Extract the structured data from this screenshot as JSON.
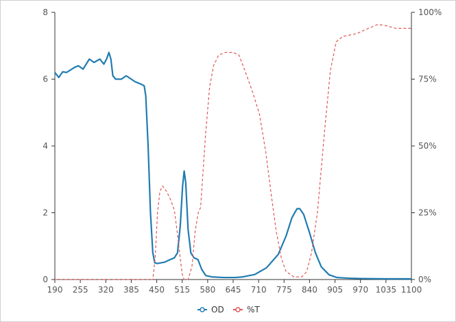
{
  "chart_data": {
    "type": "line",
    "xlabel": "",
    "ylabel": "",
    "y2label": "",
    "xlim": [
      190,
      1100
    ],
    "ylim": [
      0,
      8
    ],
    "y2lim": [
      0,
      100
    ],
    "x_ticks": [
      "190",
      "255",
      "320",
      "385",
      "450",
      "515",
      "580",
      "645",
      "710",
      "775",
      "840",
      "905",
      "970",
      "1035",
      "1100"
    ],
    "y_ticks": [
      "0",
      "2",
      "4",
      "6",
      "8"
    ],
    "y2_ticks": [
      "0%",
      "25%",
      "50%",
      "75%",
      "100%"
    ],
    "grid": false,
    "legend_position": "bottom",
    "series": [
      {
        "name": "OD",
        "axis": "left",
        "color": "#1f7bb0",
        "style": "solid",
        "points": [
          [
            190,
            6.2
          ],
          [
            200,
            6.05
          ],
          [
            210,
            6.22
          ],
          [
            220,
            6.2
          ],
          [
            240,
            6.35
          ],
          [
            250,
            6.4
          ],
          [
            262,
            6.3
          ],
          [
            278,
            6.6
          ],
          [
            290,
            6.5
          ],
          [
            305,
            6.6
          ],
          [
            315,
            6.45
          ],
          [
            322,
            6.6
          ],
          [
            328,
            6.8
          ],
          [
            333,
            6.6
          ],
          [
            338,
            6.1
          ],
          [
            345,
            6.0
          ],
          [
            360,
            6.0
          ],
          [
            372,
            6.1
          ],
          [
            385,
            6.0
          ],
          [
            395,
            5.92
          ],
          [
            410,
            5.85
          ],
          [
            418,
            5.8
          ],
          [
            422,
            5.5
          ],
          [
            428,
            4.0
          ],
          [
            434,
            2.0
          ],
          [
            440,
            0.8
          ],
          [
            445,
            0.5
          ],
          [
            452,
            0.48
          ],
          [
            470,
            0.52
          ],
          [
            485,
            0.6
          ],
          [
            495,
            0.65
          ],
          [
            503,
            0.8
          ],
          [
            510,
            1.6
          ],
          [
            516,
            2.8
          ],
          [
            520,
            3.25
          ],
          [
            524,
            2.9
          ],
          [
            530,
            1.5
          ],
          [
            537,
            0.8
          ],
          [
            545,
            0.65
          ],
          [
            555,
            0.6
          ],
          [
            565,
            0.3
          ],
          [
            575,
            0.12
          ],
          [
            590,
            0.08
          ],
          [
            620,
            0.06
          ],
          [
            650,
            0.06
          ],
          [
            670,
            0.08
          ],
          [
            700,
            0.15
          ],
          [
            730,
            0.35
          ],
          [
            760,
            0.75
          ],
          [
            780,
            1.3
          ],
          [
            795,
            1.85
          ],
          [
            808,
            2.12
          ],
          [
            815,
            2.12
          ],
          [
            825,
            1.95
          ],
          [
            840,
            1.4
          ],
          [
            855,
            0.8
          ],
          [
            870,
            0.38
          ],
          [
            890,
            0.14
          ],
          [
            910,
            0.06
          ],
          [
            940,
            0.04
          ],
          [
            970,
            0.03
          ],
          [
            1035,
            0.02
          ],
          [
            1100,
            0.02
          ]
        ]
      },
      {
        "name": "%T",
        "axis": "right",
        "color": "#e05858",
        "style": "dashed",
        "points": [
          [
            190,
            0
          ],
          [
            440,
            0
          ],
          [
            446,
            8
          ],
          [
            452,
            25
          ],
          [
            458,
            33
          ],
          [
            465,
            35
          ],
          [
            475,
            33
          ],
          [
            485,
            30
          ],
          [
            495,
            26
          ],
          [
            502,
            18
          ],
          [
            510,
            8
          ],
          [
            515,
            2
          ],
          [
            520,
            0
          ],
          [
            530,
            0
          ],
          [
            540,
            5
          ],
          [
            548,
            18
          ],
          [
            556,
            25
          ],
          [
            562,
            27
          ],
          [
            568,
            40
          ],
          [
            575,
            55
          ],
          [
            585,
            72
          ],
          [
            595,
            80
          ],
          [
            608,
            84
          ],
          [
            625,
            85
          ],
          [
            645,
            85
          ],
          [
            660,
            84
          ],
          [
            678,
            77
          ],
          [
            695,
            70
          ],
          [
            712,
            62
          ],
          [
            728,
            48
          ],
          [
            742,
            32
          ],
          [
            755,
            18
          ],
          [
            768,
            8
          ],
          [
            780,
            3
          ],
          [
            800,
            1
          ],
          [
            820,
            1
          ],
          [
            833,
            3
          ],
          [
            845,
            10
          ],
          [
            860,
            25
          ],
          [
            878,
            55
          ],
          [
            893,
            78
          ],
          [
            908,
            89
          ],
          [
            925,
            91
          ],
          [
            960,
            92
          ],
          [
            990,
            94
          ],
          [
            1015,
            95.5
          ],
          [
            1035,
            95
          ],
          [
            1060,
            94
          ],
          [
            1100,
            94
          ]
        ]
      }
    ]
  }
}
